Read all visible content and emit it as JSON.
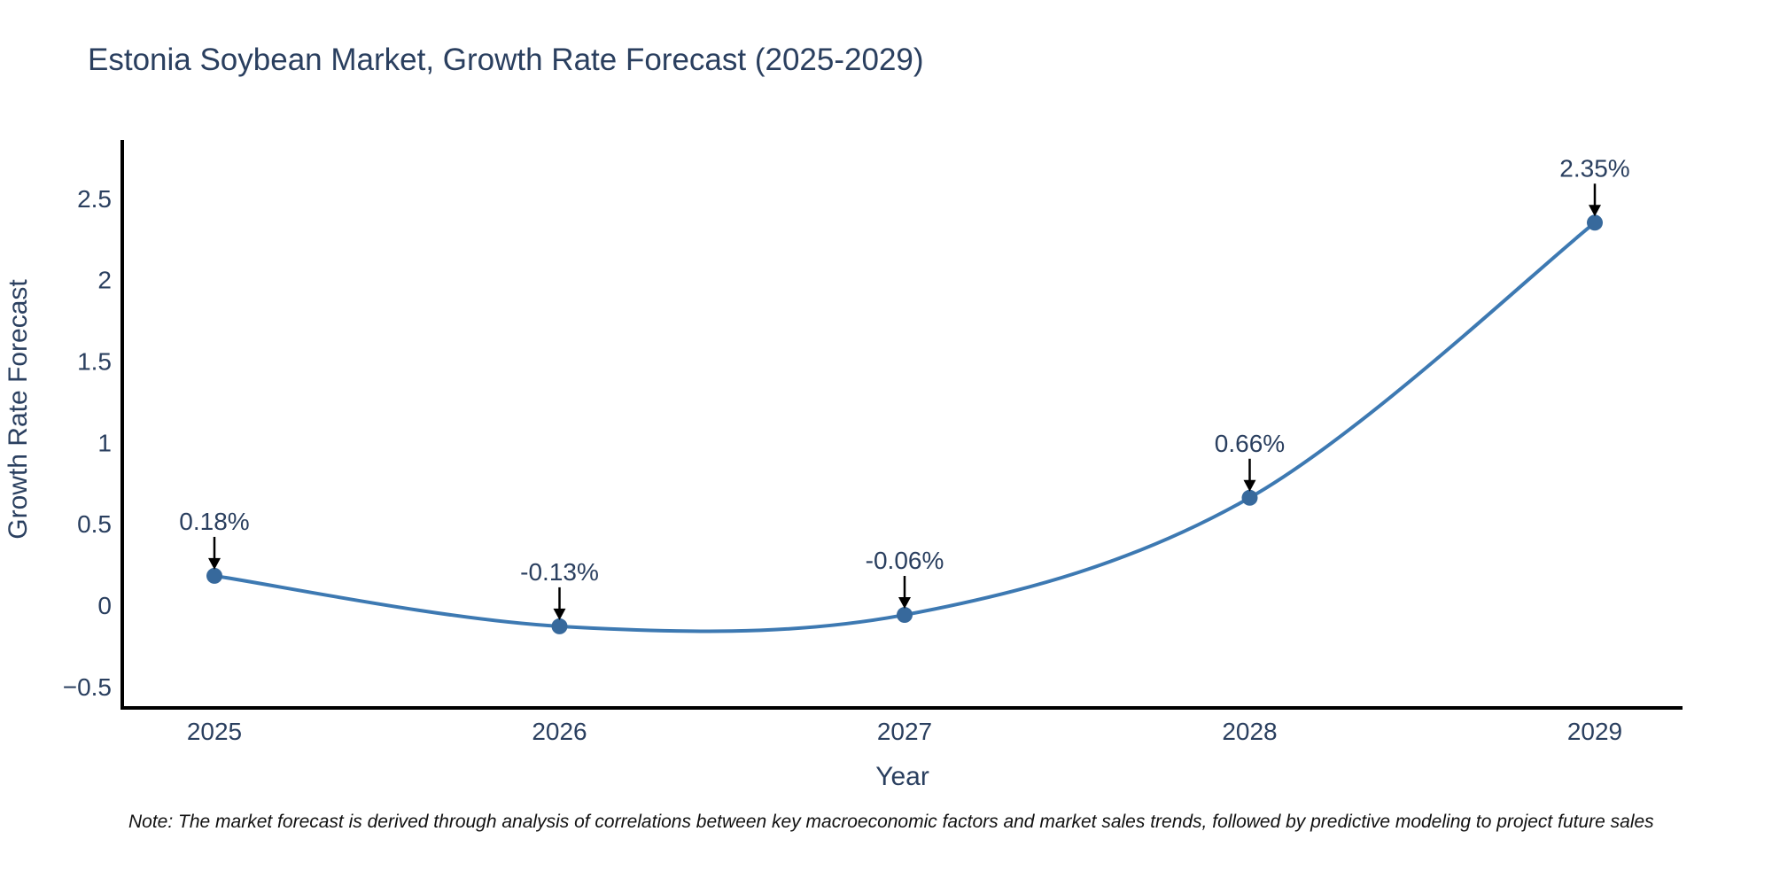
{
  "page": {
    "background": "#ffffff"
  },
  "chart": {
    "title": "Estonia Soybean Market, Growth Rate Forecast (2025-2029)",
    "note": "Note: The market forecast is derived through analysis of correlations between key macroeconomic factors and market sales trends, followed by predictive modeling to project future sales"
  },
  "chart_data": {
    "type": "line",
    "title": "Estonia Soybean Market, Growth Rate Forecast (2025-2029)",
    "xlabel": "Year",
    "ylabel": "Growth Rate Forecast",
    "line_shape": "spline",
    "grid": false,
    "legend": "none",
    "x": [
      2025,
      2026,
      2027,
      2028,
      2029
    ],
    "y": [
      0.18,
      -0.13,
      -0.06,
      0.66,
      2.35
    ],
    "point_labels": [
      "0.18%",
      "-0.13%",
      "-0.06%",
      "0.66%",
      "2.35%"
    ],
    "x_ticks": [
      {
        "value": 2025,
        "label": "2025"
      },
      {
        "value": 2026,
        "label": "2026"
      },
      {
        "value": 2027,
        "label": "2027"
      },
      {
        "value": 2028,
        "label": "2028"
      },
      {
        "value": 2029,
        "label": "2029"
      }
    ],
    "y_ticks": [
      {
        "value": 2.5,
        "label": "2.5"
      },
      {
        "value": 2,
        "label": "2"
      },
      {
        "value": 1.5,
        "label": "1.5"
      },
      {
        "value": 1,
        "label": "1"
      },
      {
        "value": 0.5,
        "label": "0.5"
      },
      {
        "value": 0,
        "label": "0"
      },
      {
        "value": -0.5,
        "label": "−0.5"
      }
    ],
    "xlim": [
      2024.73,
      2029.25
    ],
    "ylim": [
      -0.64,
      2.86
    ],
    "colors": {
      "line": "#3d79b2",
      "marker": "#37699c",
      "axis": "#000000",
      "text": "#2a3f5f",
      "annotation_text": "#2a3f5f",
      "annotation_arrow": "#000000",
      "note_text": "#111111",
      "background": "#ffffff"
    }
  }
}
